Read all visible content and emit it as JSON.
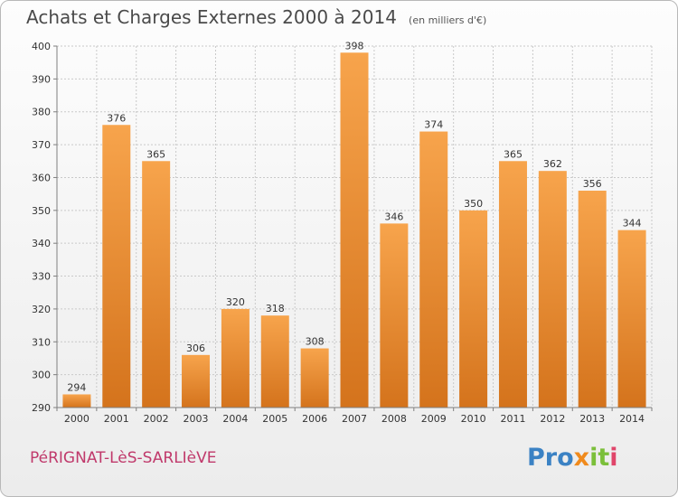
{
  "header": {
    "title": "Achats et Charges Externes 2000 à 2014",
    "subtitle": "(en milliers d'€)"
  },
  "footer": {
    "commune": "PéRIGNAT-LèS-SARLIèVE",
    "logo": {
      "text": "Proxiti",
      "parts": [
        "Pro",
        "x",
        "it",
        "i"
      ]
    }
  },
  "colors": {
    "bar_light": "#f7a44c",
    "bar_dark": "#d4731c",
    "grid": "#c9c9c9",
    "axis": "#7f7f7f"
  },
  "chart_data": {
    "type": "bar",
    "title": "Achats et Charges Externes 2000 à 2014",
    "subtitle": "(en milliers d'€)",
    "xlabel": "",
    "ylabel": "",
    "categories": [
      "2000",
      "2001",
      "2002",
      "2003",
      "2004",
      "2005",
      "2006",
      "2007",
      "2008",
      "2009",
      "2010",
      "2011",
      "2012",
      "2013",
      "2014"
    ],
    "values": [
      294,
      376,
      365,
      306,
      320,
      318,
      308,
      398,
      346,
      374,
      350,
      365,
      362,
      356,
      344
    ],
    "ylim": [
      290,
      400
    ],
    "yticks": [
      290,
      300,
      310,
      320,
      330,
      340,
      350,
      360,
      370,
      380,
      390,
      400
    ],
    "grid": true,
    "data_labels": true
  }
}
